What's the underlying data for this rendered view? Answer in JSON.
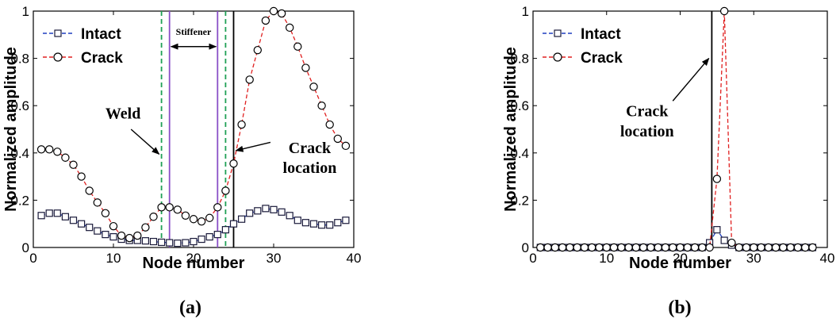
{
  "chart_data": [
    {
      "id": "a",
      "type": "line",
      "panel_label": "(a)",
      "xlabel": "Node number",
      "ylabel": "Normalized amplitude",
      "xlim": [
        0,
        40
      ],
      "ylim": [
        0,
        1
      ],
      "xticks": [
        "0",
        "10",
        "20",
        "30",
        "40"
      ],
      "yticks": [
        "0",
        "0.2",
        "0.4",
        "0.6",
        "0.8",
        "1"
      ],
      "legend": {
        "position": "top-left"
      },
      "x": [
        1,
        2,
        3,
        4,
        5,
        6,
        7,
        8,
        9,
        10,
        11,
        12,
        13,
        14,
        15,
        16,
        17,
        18,
        19,
        20,
        21,
        22,
        23,
        24,
        25,
        26,
        27,
        28,
        29,
        30,
        31,
        32,
        33,
        34,
        35,
        36,
        37,
        38,
        39
      ],
      "series": [
        {
          "name": "Intact",
          "color": "#1f3fbf",
          "marker": "square",
          "line": "dashed",
          "values": [
            0.135,
            0.145,
            0.145,
            0.13,
            0.115,
            0.1,
            0.085,
            0.07,
            0.055,
            0.045,
            0.035,
            0.03,
            0.03,
            0.028,
            0.025,
            0.022,
            0.02,
            0.018,
            0.02,
            0.025,
            0.035,
            0.045,
            0.055,
            0.075,
            0.1,
            0.12,
            0.145,
            0.155,
            0.165,
            0.16,
            0.15,
            0.135,
            0.115,
            0.105,
            0.1,
            0.095,
            0.095,
            0.105,
            0.115
          ]
        },
        {
          "name": "Crack",
          "color": "#e02020",
          "marker": "circle",
          "line": "dashed",
          "values": [
            0.415,
            0.415,
            0.405,
            0.38,
            0.35,
            0.3,
            0.24,
            0.19,
            0.145,
            0.09,
            0.05,
            0.04,
            0.05,
            0.085,
            0.13,
            0.17,
            0.17,
            0.16,
            0.135,
            0.12,
            0.11,
            0.125,
            0.17,
            0.24,
            0.355,
            0.52,
            0.71,
            0.835,
            0.96,
            1.0,
            0.99,
            0.93,
            0.85,
            0.76,
            0.68,
            0.6,
            0.52,
            0.46,
            0.43
          ]
        }
      ],
      "vertical_lines": [
        {
          "x": 16,
          "color": "#1fa055",
          "style": "dashed"
        },
        {
          "x": 24,
          "color": "#1fa055",
          "style": "dashed"
        },
        {
          "x": 17,
          "color": "#8a4fc7",
          "style": "solid"
        },
        {
          "x": 23,
          "color": "#8a4fc7",
          "style": "solid"
        },
        {
          "x": 25,
          "color": "#000000",
          "style": "solid"
        }
      ],
      "annotations": {
        "weld": "Weld",
        "stiffener": "Stiffener",
        "crack_line1": "Crack",
        "crack_line2": "location"
      }
    },
    {
      "id": "b",
      "type": "line",
      "panel_label": "(b)",
      "xlabel": "Node number",
      "ylabel": "Normalized amplitude",
      "xlim": [
        0,
        40
      ],
      "ylim": [
        0,
        1
      ],
      "xticks": [
        "0",
        "10",
        "20",
        "30",
        "40"
      ],
      "yticks": [
        "0",
        "0.2",
        "0.4",
        "0.6",
        "0.8",
        "1"
      ],
      "legend": {
        "position": "top-left"
      },
      "x": [
        1,
        2,
        3,
        4,
        5,
        6,
        7,
        8,
        9,
        10,
        11,
        12,
        13,
        14,
        15,
        16,
        17,
        18,
        19,
        20,
        21,
        22,
        23,
        24,
        25,
        26,
        27,
        28,
        29,
        30,
        31,
        32,
        33,
        34,
        35,
        36,
        37,
        38
      ],
      "series": [
        {
          "name": "Intact",
          "color": "#1f3fbf",
          "marker": "square",
          "line": "dashed",
          "values": [
            0,
            0,
            0,
            0,
            0,
            0,
            0,
            0,
            0,
            0,
            0,
            0,
            0,
            0,
            0,
            0,
            0,
            0,
            0,
            0,
            0,
            0,
            0,
            0.02,
            0.075,
            0.03,
            0.01,
            0,
            0,
            0,
            0,
            0,
            0,
            0,
            0,
            0,
            0,
            0
          ]
        },
        {
          "name": "Crack",
          "color": "#e02020",
          "marker": "circle",
          "line": "dashed",
          "values": [
            0,
            0,
            0,
            0,
            0,
            0,
            0,
            0,
            0,
            0,
            0,
            0,
            0,
            0,
            0,
            0,
            0,
            0,
            0,
            0,
            0,
            0,
            0,
            0,
            0.29,
            1.0,
            0.02,
            0,
            0,
            0,
            0,
            0,
            0,
            0,
            0,
            0,
            0,
            0
          ]
        }
      ],
      "vertical_lines": [
        {
          "x": 24.3,
          "color": "#000000",
          "style": "solid"
        }
      ],
      "annotations": {
        "crack_line1": "Crack",
        "crack_line2": "location"
      }
    }
  ]
}
